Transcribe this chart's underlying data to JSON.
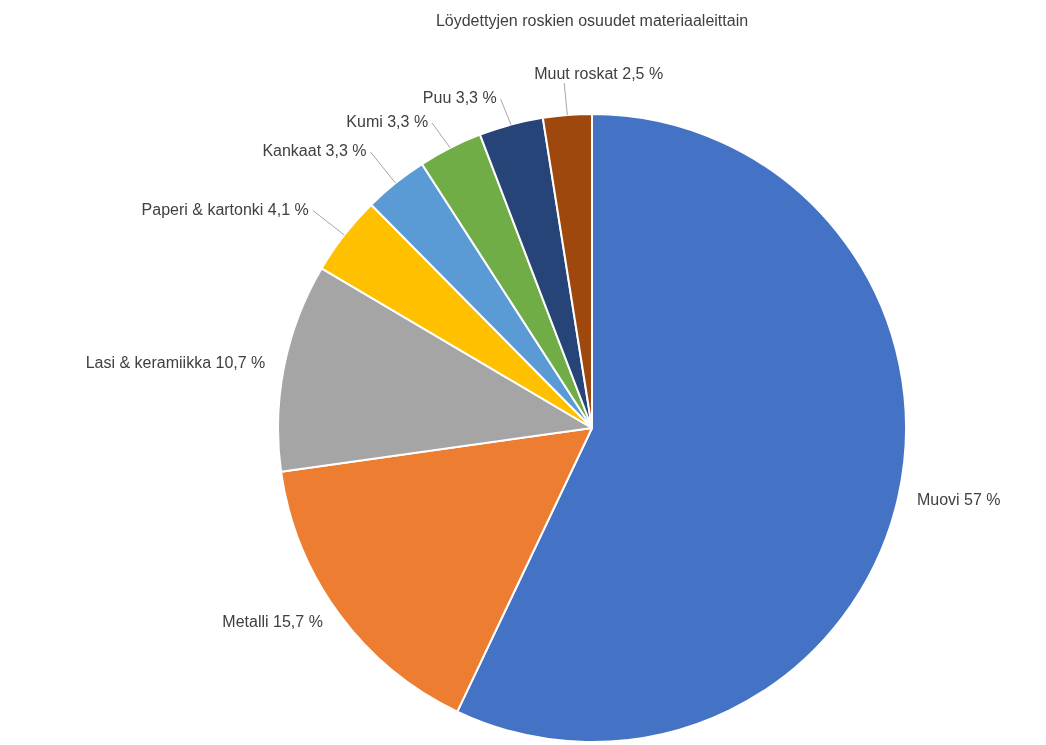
{
  "chart_data": {
    "type": "pie",
    "title": "Löydettyjen roskien osuudet materiaaleittain",
    "categories": [
      "Muovi",
      "Metalli",
      "Lasi & keramiikka",
      "Paperi & kartonki",
      "Kankaat",
      "Kumi",
      "Puu",
      "Muut roskat"
    ],
    "values": [
      57,
      15.7,
      10.7,
      4.1,
      3.3,
      3.3,
      3.3,
      2.5
    ],
    "value_labels": [
      "57 %",
      "15,7 %",
      "10,7 %",
      "4,1 %",
      "3,3 %",
      "3,3 %",
      "3,3 %",
      "2,5 %"
    ],
    "colors": [
      "#4472c4",
      "#ed7d31",
      "#a5a5a5",
      "#ffc000",
      "#5b9bd5",
      "#70ad47",
      "#264478",
      "#9e480e"
    ],
    "legend": false
  }
}
